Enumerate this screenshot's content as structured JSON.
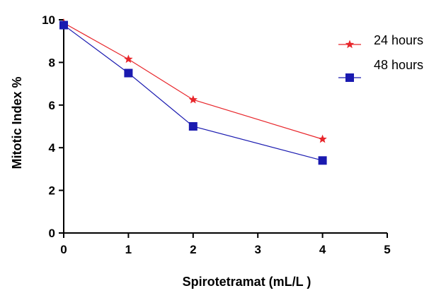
{
  "chart_data": {
    "type": "line",
    "title": "",
    "xlabel": "Spirotetramat (mL/L )",
    "ylabel": "Mitotic Index %",
    "xlim": [
      0,
      5
    ],
    "ylim": [
      0,
      10
    ],
    "xticks": [
      0,
      1,
      2,
      3,
      4,
      5
    ],
    "yticks": [
      0,
      2,
      4,
      6,
      8,
      10
    ],
    "grid": false,
    "legend": "top-right",
    "series": [
      {
        "name": "24 hours",
        "color": "#e8262b",
        "marker": "star",
        "x": [
          0,
          1,
          2,
          4
        ],
        "y": [
          9.85,
          8.15,
          6.25,
          4.4
        ]
      },
      {
        "name": "48 hours",
        "color": "#1a1ab0",
        "marker": "square",
        "x": [
          0,
          1,
          2,
          4
        ],
        "y": [
          9.75,
          7.5,
          5.0,
          3.4
        ]
      }
    ]
  }
}
